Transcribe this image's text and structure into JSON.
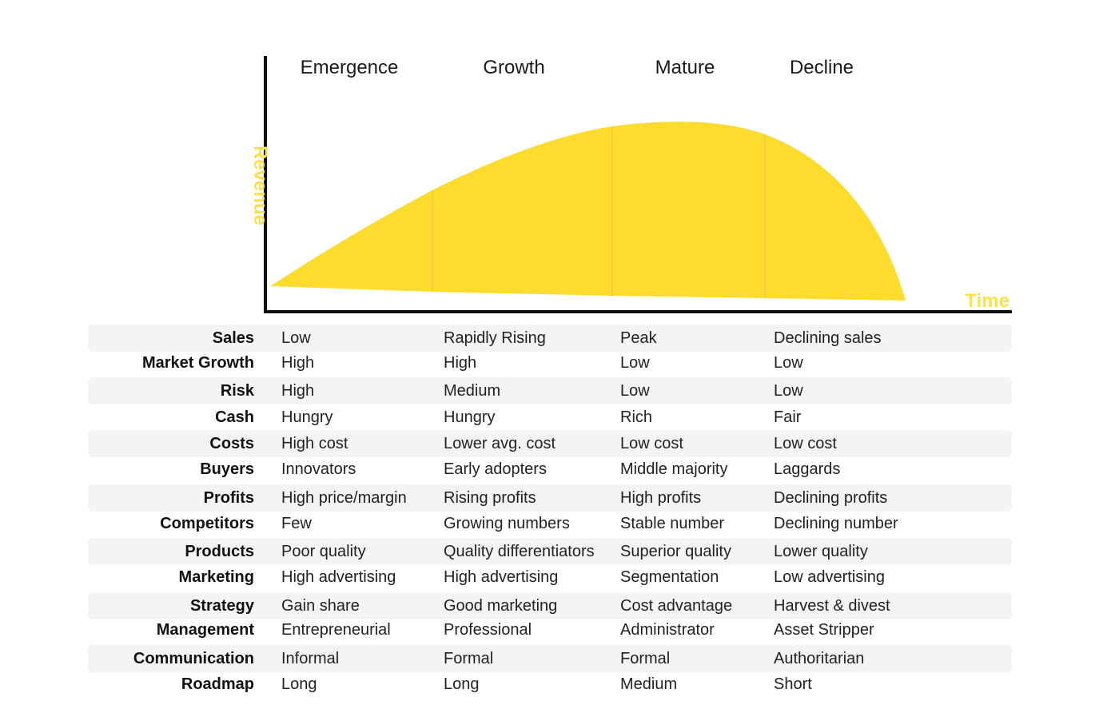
{
  "chart_data": {
    "type": "area",
    "stages": [
      "Emergence",
      "Growth",
      "Mature",
      "Decline"
    ],
    "ylabel": "Revenue",
    "xlabel": "Time",
    "fill_color": "#fddc2e",
    "axis_color": "#111111",
    "axis_label_color": "#fbe14a",
    "stage_divider_color": "#ead13a"
  },
  "table": {
    "rows": [
      {
        "label": "Sales",
        "values": [
          "Low",
          "Rapidly Rising",
          "Peak",
          "Declining sales"
        ]
      },
      {
        "label": "Market Growth",
        "values": [
          "High",
          "High",
          "Low",
          "Low"
        ]
      },
      {
        "label": "Risk",
        "values": [
          "High",
          "Medium",
          "Low",
          "Low"
        ]
      },
      {
        "label": "Cash",
        "values": [
          "Hungry",
          "Hungry",
          "Rich",
          "Fair"
        ]
      },
      {
        "label": "Costs",
        "values": [
          "High cost",
          "Lower avg. cost",
          "Low cost",
          "Low cost"
        ]
      },
      {
        "label": "Buyers",
        "values": [
          "Innovators",
          "Early adopters",
          "Middle majority",
          "Laggards"
        ]
      },
      {
        "label": "Profits",
        "values": [
          "High price/margin",
          "Rising profits",
          "High profits",
          "Declining profits"
        ]
      },
      {
        "label": "Competitors",
        "values": [
          "Few",
          "Growing numbers",
          "Stable number",
          "Declining number"
        ]
      },
      {
        "label": "Products",
        "values": [
          "Poor quality",
          "Quality differentiators",
          "Superior quality",
          "Lower quality"
        ]
      },
      {
        "label": "Marketing",
        "values": [
          "High advertising",
          "High advertising",
          "Segmentation",
          "Low advertising"
        ]
      },
      {
        "label": "Strategy",
        "values": [
          "Gain share",
          "Good marketing",
          "Cost advantage",
          "Harvest & divest"
        ]
      },
      {
        "label": "Management",
        "values": [
          "Entrepreneurial",
          "Professional",
          "Administrator",
          "Asset Stripper"
        ]
      },
      {
        "label": "Communication",
        "values": [
          "Informal",
          "Formal",
          "Formal",
          "Authoritarian"
        ]
      },
      {
        "label": "Roadmap",
        "values": [
          "Long",
          "Long",
          "Medium",
          "Short"
        ]
      }
    ]
  }
}
